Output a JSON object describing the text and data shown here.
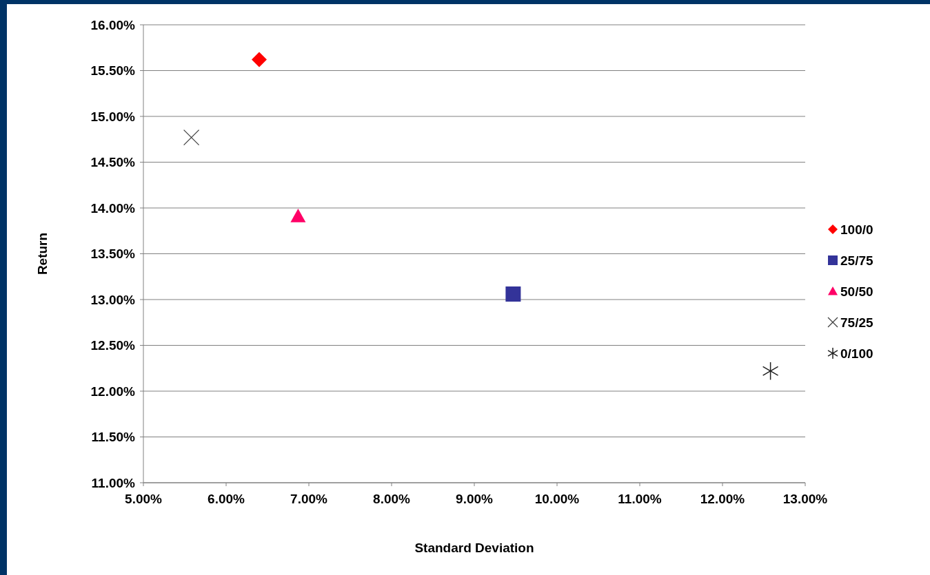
{
  "chart_data": {
    "type": "scatter",
    "xlabel": "Standard Deviation",
    "ylabel": "Return",
    "xlim": [
      5,
      13
    ],
    "ylim": [
      11,
      16
    ],
    "xticks": [
      {
        "value": 5,
        "label": "5.00%"
      },
      {
        "value": 6,
        "label": "6.00%"
      },
      {
        "value": 7,
        "label": "7.00%"
      },
      {
        "value": 8,
        "label": "8.00%"
      },
      {
        "value": 9,
        "label": "9.00%"
      },
      {
        "value": 10,
        "label": "10.00%"
      },
      {
        "value": 11,
        "label": "11.00%"
      },
      {
        "value": 12,
        "label": "12.00%"
      },
      {
        "value": 13,
        "label": "13.00%"
      }
    ],
    "yticks": [
      {
        "value": 11,
        "label": "11.00%"
      },
      {
        "value": 11.5,
        "label": "11.50%"
      },
      {
        "value": 12,
        "label": "12.00%"
      },
      {
        "value": 12.5,
        "label": "12.50%"
      },
      {
        "value": 13,
        "label": "13.00%"
      },
      {
        "value": 13.5,
        "label": "13.50%"
      },
      {
        "value": 14,
        "label": "14.00%"
      },
      {
        "value": 14.5,
        "label": "14.50%"
      },
      {
        "value": 15,
        "label": "15.00%"
      },
      {
        "value": 15.5,
        "label": "15.50%"
      },
      {
        "value": 16,
        "label": "16.00%"
      }
    ],
    "grid": "y",
    "legend": "right",
    "series": [
      {
        "name": "100/0",
        "color": "#ff0000",
        "marker": "diamond",
        "x": [
          6.4
        ],
        "values": [
          15.62
        ]
      },
      {
        "name": "25/75",
        "color": "#333399",
        "marker": "square",
        "x": [
          9.47
        ],
        "values": [
          13.06
        ]
      },
      {
        "name": "50/50",
        "color": "#ff0066",
        "marker": "triangle",
        "x": [
          6.87
        ],
        "values": [
          13.91
        ]
      },
      {
        "name": "75/25",
        "color": "#404040",
        "marker": "cross",
        "x": [
          5.58
        ],
        "values": [
          14.77
        ]
      },
      {
        "name": "0/100",
        "color": "#202020",
        "marker": "star",
        "x": [
          12.58
        ],
        "values": [
          12.22
        ]
      }
    ]
  }
}
